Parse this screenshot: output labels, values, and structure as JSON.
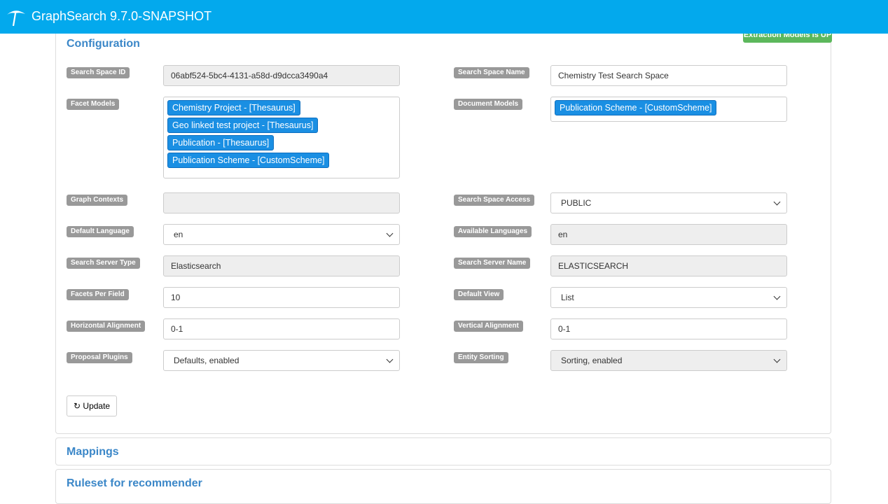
{
  "header": {
    "title": "GraphSearch 9.7.0-SNAPSHOT"
  },
  "configuration": {
    "title": "Configuration",
    "status_badge": "Extraction Models is UP",
    "left": [
      {
        "label": "Search Space ID",
        "value": "06abf524-5bc4-4131-a58d-d9dcca3490a4",
        "type": "readonly"
      },
      {
        "label": "Facet Models",
        "tags": [
          "Chemistry Project - [Thesaurus]",
          "Geo linked test project - [Thesaurus]",
          "Publication - [Thesaurus]",
          "Publication Scheme - [CustomScheme]"
        ]
      },
      {
        "label": "Graph Contexts",
        "value": "",
        "type": "readonly"
      },
      {
        "label": "Default Language",
        "value": "en",
        "type": "select"
      },
      {
        "label": "Search Server Type",
        "value": "Elasticsearch",
        "type": "readonly"
      },
      {
        "label": "Facets Per Field",
        "value": "10",
        "type": "input"
      },
      {
        "label": "Horizontal Alignment",
        "value": "0-1",
        "type": "input"
      },
      {
        "label": "Proposal Plugins",
        "value": "Defaults, enabled",
        "type": "select"
      }
    ],
    "right": [
      {
        "label": "Search Space Name",
        "value": "Chemistry Test Search Space",
        "type": "input"
      },
      {
        "label": "Document Models",
        "tags": [
          "Publication Scheme - [CustomScheme]"
        ]
      },
      {
        "label": "Search Space Access",
        "value": "PUBLIC",
        "type": "select"
      },
      {
        "label": "Available Languages",
        "value": "en",
        "type": "readonly"
      },
      {
        "label": "Search Server Name",
        "value": "ELASTICSEARCH",
        "type": "readonly"
      },
      {
        "label": "Default View",
        "value": "List",
        "type": "select"
      },
      {
        "label": "Vertical Alignment",
        "value": "0-1",
        "type": "input"
      },
      {
        "label": "Entity Sorting",
        "value": "Sorting, enabled",
        "type": "select-disabled"
      }
    ],
    "update_button": "Update"
  },
  "sections": [
    {
      "title": "Mappings"
    },
    {
      "title": "Ruleset for recommender"
    }
  ],
  "colors": {
    "header": "#03a9ed",
    "accent": "#3b87c8",
    "tag": "#1a8fe3",
    "status": "#5cb85c"
  }
}
